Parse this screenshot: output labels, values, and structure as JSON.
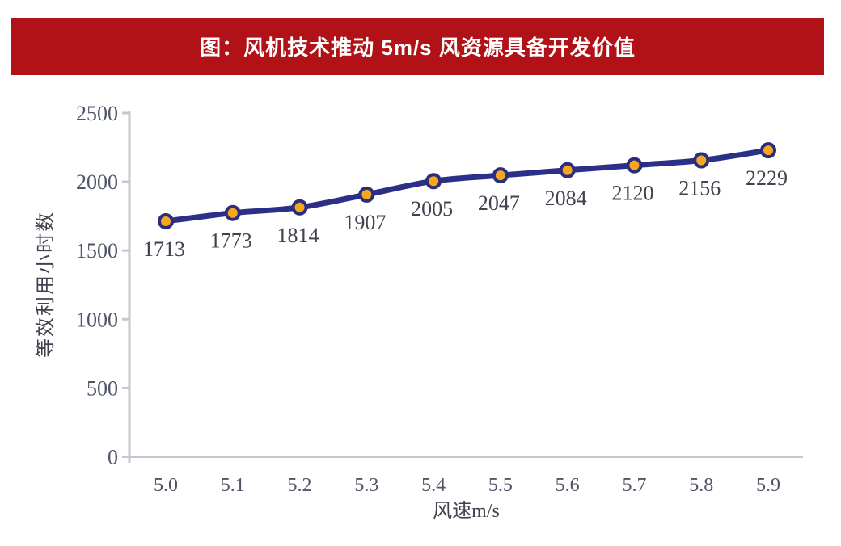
{
  "banner": {
    "title": "图：风机技术推动 5m/s 风资源具备开发价值",
    "bg_color": "#B01218",
    "text_color": "#FFFFFF"
  },
  "chart_data": {
    "type": "line",
    "title": "图：风机技术推动 5m/s 风资源具备开发价值",
    "categories": [
      "5.0",
      "5.1",
      "5.2",
      "5.3",
      "5.4",
      "5.5",
      "5.6",
      "5.7",
      "5.8",
      "5.9"
    ],
    "values": [
      1713,
      1773,
      1814,
      1907,
      2005,
      2047,
      2084,
      2120,
      2156,
      2229
    ],
    "data_labels": [
      "1713",
      "1773",
      "1814",
      "1907",
      "2005",
      "2047",
      "2084",
      "2120",
      "2156",
      "2229"
    ],
    "xlabel": "风速m/s",
    "ylabel": "等效利用小时数",
    "ylim": [
      0,
      2500
    ],
    "yticks": [
      0,
      500,
      1000,
      1500,
      2000,
      2500
    ],
    "grid": false,
    "legend": false,
    "marker": "circle",
    "smooth_line": true,
    "colors": {
      "line": "#2B2F87",
      "marker_fill": "#F5A71E",
      "marker_stroke": "#2B2E7E",
      "axis": "#C5C6CE",
      "tick_label": "#4E5566",
      "data_label": "#3F434E",
      "axis_title": "#3F434E"
    }
  }
}
